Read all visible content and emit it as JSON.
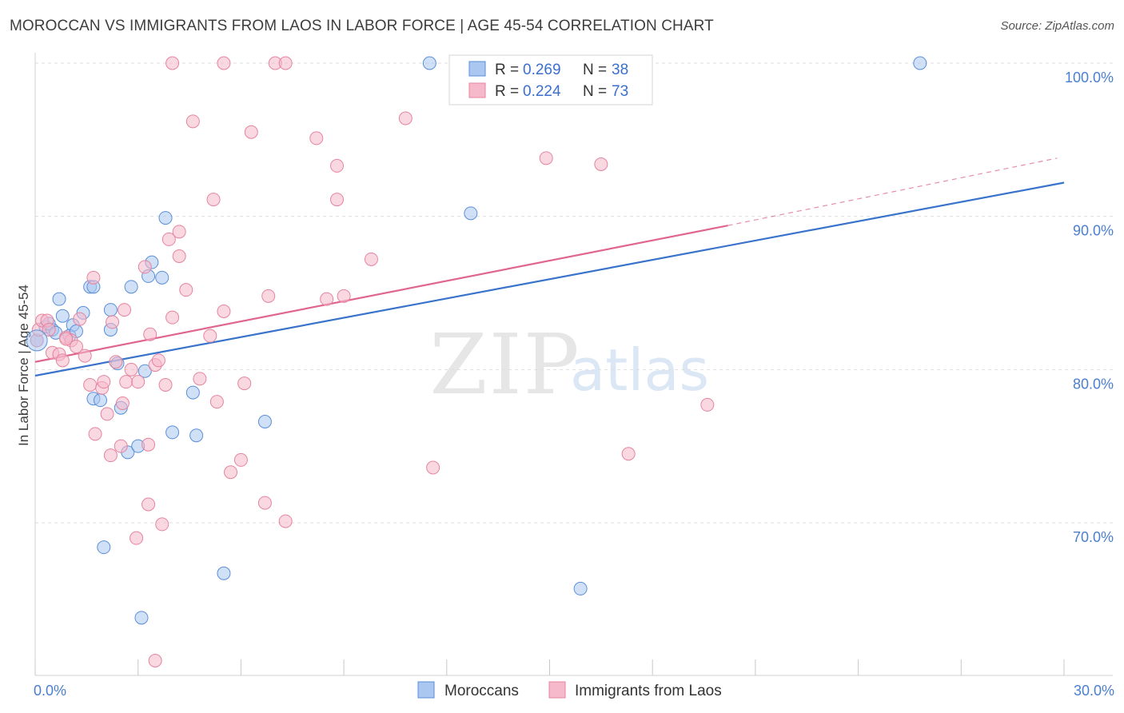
{
  "title": "MOROCCAN VS IMMIGRANTS FROM LAOS IN LABOR FORCE | AGE 45-54 CORRELATION CHART",
  "source": "Source: ZipAtlas.com",
  "watermark": {
    "zip": "ZIP",
    "atlas": "atlas"
  },
  "colors": {
    "moroccans_fill": "#a9c7f1",
    "moroccans_stroke": "#5b8fd8",
    "moroccans_line": "#3a73cc",
    "laos_fill": "#f6b8cb",
    "laos_stroke": "#e5849f",
    "laos_line": "#e0668f",
    "tick_text": "#4a7fd0",
    "grid": "#dedede"
  },
  "legend": {
    "rows": [
      {
        "r_label": "R = ",
        "r_value": "0.269",
        "n_label": "N = ",
        "n_value": "38"
      },
      {
        "r_label": "R = ",
        "r_value": "0.224",
        "n_label": "N = ",
        "n_value": "73"
      }
    ]
  },
  "chart_data": {
    "type": "scatter",
    "title": "MOROCCAN VS IMMIGRANTS FROM LAOS IN LABOR FORCE | AGE 45-54 CORRELATION CHART",
    "xlabel": "",
    "ylabel": "In Labor Force | Age 45-54",
    "xlim": [
      0,
      30
    ],
    "ylim": [
      61,
      101
    ],
    "x_tick_labels": [
      {
        "value": 0,
        "label": "0.0%"
      },
      {
        "value": 30,
        "label": "30.0%"
      }
    ],
    "y_tick_labels": [
      {
        "value": 100,
        "label": "100.0%"
      },
      {
        "value": 90,
        "label": "90.0%"
      },
      {
        "value": 80,
        "label": "80.0%"
      },
      {
        "value": 70,
        "label": "70.0%"
      }
    ],
    "grid": true,
    "legend_position": "top-center",
    "series": [
      {
        "name": "Moroccans",
        "r": 0.269,
        "n": 38,
        "trend": {
          "x": [
            0,
            30
          ],
          "y": [
            79.6,
            92.2
          ]
        },
        "points": [
          [
            0.05,
            81.9
          ],
          [
            0.3,
            82.8
          ],
          [
            0.5,
            82.6
          ],
          [
            0.4,
            83.0
          ],
          [
            0.7,
            84.6
          ],
          [
            0.8,
            83.5
          ],
          [
            1.1,
            82.9
          ],
          [
            1.0,
            82.2
          ],
          [
            1.4,
            83.7
          ],
          [
            1.6,
            85.4
          ],
          [
            1.7,
            85.4
          ],
          [
            1.7,
            78.1
          ],
          [
            1.9,
            78.0
          ],
          [
            2.2,
            82.6
          ],
          [
            2.2,
            83.9
          ],
          [
            2.4,
            80.4
          ],
          [
            2.5,
            77.5
          ],
          [
            2.7,
            74.6
          ],
          [
            2.8,
            85.4
          ],
          [
            3.0,
            75.0
          ],
          [
            3.2,
            79.9
          ],
          [
            3.3,
            86.1
          ],
          [
            3.4,
            87.0
          ],
          [
            3.7,
            86.0
          ],
          [
            3.8,
            89.9
          ],
          [
            4.0,
            75.9
          ],
          [
            4.6,
            78.5
          ],
          [
            4.7,
            75.7
          ],
          [
            5.5,
            66.7
          ],
          [
            6.7,
            76.6
          ],
          [
            2.0,
            68.4
          ],
          [
            3.1,
            63.8
          ],
          [
            11.5,
            100.0
          ],
          [
            12.7,
            90.2
          ],
          [
            15.9,
            65.7
          ],
          [
            25.8,
            100.0
          ],
          [
            0.6,
            82.4
          ],
          [
            1.2,
            82.5
          ]
        ]
      },
      {
        "name": "Immigrants from Laos",
        "r": 0.224,
        "n": 73,
        "trend": {
          "x": [
            0,
            20.2
          ],
          "y": [
            80.5,
            89.4
          ]
        },
        "trend_dashed": {
          "x": [
            20.2,
            29.8
          ],
          "y": [
            89.4,
            93.8
          ]
        },
        "points": [
          [
            0.05,
            81.9
          ],
          [
            0.1,
            82.6
          ],
          [
            0.2,
            83.2
          ],
          [
            0.35,
            83.2
          ],
          [
            0.4,
            82.6
          ],
          [
            0.5,
            81.1
          ],
          [
            0.7,
            81.0
          ],
          [
            0.8,
            80.6
          ],
          [
            0.9,
            82.1
          ],
          [
            1.05,
            81.9
          ],
          [
            1.2,
            81.5
          ],
          [
            1.3,
            83.3
          ],
          [
            1.45,
            80.9
          ],
          [
            1.6,
            79.0
          ],
          [
            1.7,
            86.0
          ],
          [
            1.75,
            75.8
          ],
          [
            1.95,
            78.8
          ],
          [
            2.0,
            79.2
          ],
          [
            2.1,
            77.1
          ],
          [
            2.2,
            74.4
          ],
          [
            2.25,
            83.1
          ],
          [
            2.35,
            80.5
          ],
          [
            2.5,
            75.0
          ],
          [
            2.55,
            77.8
          ],
          [
            2.6,
            83.9
          ],
          [
            2.65,
            79.2
          ],
          [
            2.8,
            80.0
          ],
          [
            2.95,
            69.0
          ],
          [
            3.0,
            79.2
          ],
          [
            3.2,
            86.7
          ],
          [
            3.3,
            71.2
          ],
          [
            3.3,
            75.1
          ],
          [
            3.35,
            82.3
          ],
          [
            3.5,
            80.3
          ],
          [
            3.6,
            80.6
          ],
          [
            3.7,
            69.9
          ],
          [
            3.8,
            79.0
          ],
          [
            3.9,
            88.5
          ],
          [
            4.0,
            83.4
          ],
          [
            4.2,
            87.4
          ],
          [
            4.2,
            89.0
          ],
          [
            4.4,
            85.2
          ],
          [
            4.6,
            96.2
          ],
          [
            4.8,
            79.4
          ],
          [
            5.1,
            82.2
          ],
          [
            5.2,
            91.1
          ],
          [
            5.3,
            77.9
          ],
          [
            5.5,
            83.8
          ],
          [
            5.7,
            73.3
          ],
          [
            6.0,
            74.1
          ],
          [
            6.1,
            79.1
          ],
          [
            6.3,
            95.5
          ],
          [
            6.7,
            71.3
          ],
          [
            6.8,
            84.8
          ],
          [
            7.3,
            70.1
          ],
          [
            8.2,
            95.1
          ],
          [
            8.5,
            84.6
          ],
          [
            8.8,
            93.3
          ],
          [
            8.8,
            91.1
          ],
          [
            9.0,
            84.8
          ],
          [
            9.8,
            87.2
          ],
          [
            10.8,
            96.4
          ],
          [
            11.6,
            73.6
          ],
          [
            4.0,
            100.0
          ],
          [
            5.5,
            100.0
          ],
          [
            7.0,
            100.0
          ],
          [
            7.3,
            100.0
          ],
          [
            14.9,
            93.8
          ],
          [
            16.5,
            93.4
          ],
          [
            17.3,
            74.5
          ],
          [
            19.6,
            77.7
          ],
          [
            3.5,
            61.0
          ],
          [
            0.9,
            82.0
          ]
        ]
      }
    ]
  },
  "bottom_legend": [
    {
      "label": "Moroccans"
    },
    {
      "label": "Immigrants from Laos"
    }
  ]
}
